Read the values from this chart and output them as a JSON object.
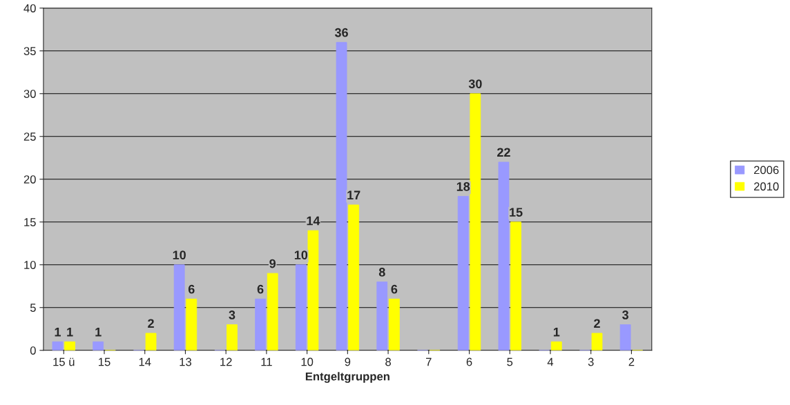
{
  "chart_data": {
    "type": "bar",
    "xlabel": "Entgeltgruppen",
    "categories": [
      "15 ü",
      "15",
      "14",
      "13",
      "12",
      "11",
      "10",
      "9",
      "8",
      "7",
      "6",
      "5",
      "4",
      "3",
      "2"
    ],
    "series": [
      {
        "name": "2006",
        "color": "#9999ff",
        "values": [
          1,
          1,
          0,
          10,
          0,
          6,
          10,
          36,
          8,
          0,
          18,
          22,
          0,
          0,
          3
        ],
        "value_labels": [
          "1",
          "1",
          null,
          "10",
          null,
          "6",
          "10",
          "36",
          "8",
          null,
          "18",
          "22",
          null,
          null,
          "3"
        ]
      },
      {
        "name": "2010",
        "color": "#ffff00",
        "values": [
          1,
          0,
          2,
          6,
          3,
          9,
          14,
          17,
          6,
          0,
          30,
          15,
          1,
          2,
          0
        ],
        "value_labels": [
          "1",
          null,
          "2",
          "6",
          "3",
          "9",
          "14",
          "17",
          "6",
          null,
          "30",
          "15",
          "1",
          "2",
          null
        ]
      }
    ],
    "ylim": [
      0,
      40
    ],
    "yticks": [
      0,
      5,
      10,
      15,
      20,
      25,
      30,
      35,
      40
    ],
    "grid": "y",
    "legend": "right"
  }
}
